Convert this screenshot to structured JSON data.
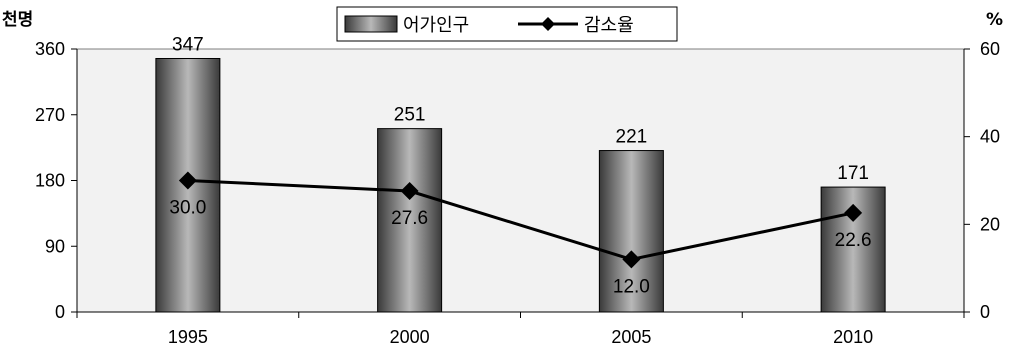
{
  "chart_data": {
    "type": "bar",
    "categories": [
      "1995",
      "2000",
      "2005",
      "2010"
    ],
    "series": [
      {
        "name": "어가인구",
        "type": "bar",
        "axis": "left",
        "values": [
          347,
          251,
          221,
          171
        ]
      },
      {
        "name": "감소율",
        "type": "line",
        "axis": "right",
        "values": [
          30.0,
          27.6,
          12.0,
          22.6
        ]
      }
    ],
    "y_left": {
      "unit": "천명",
      "ticks": [
        "0",
        "90",
        "180",
        "270",
        "360"
      ],
      "ylim": [
        0,
        360
      ]
    },
    "y_right": {
      "unit": "%",
      "ticks": [
        "0",
        "20",
        "40",
        "60"
      ],
      "ylim": [
        0,
        60
      ]
    },
    "legend": {
      "position": "top-center"
    },
    "grid": false,
    "colors": {
      "plot_bg": "#f2f2f2",
      "bar_dark": "#3a3a3a",
      "bar_light": "#b8b8b8",
      "line": "#000000"
    }
  }
}
